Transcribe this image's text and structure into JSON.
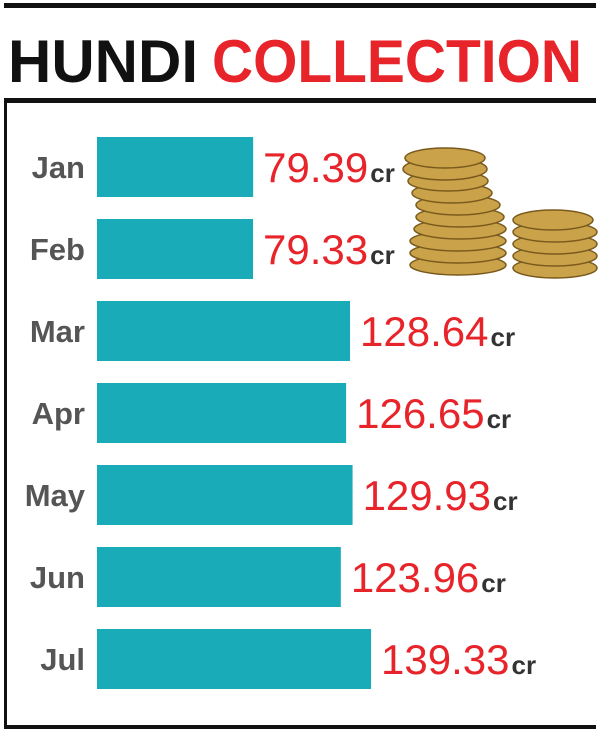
{
  "chart_data": {
    "type": "bar",
    "orientation": "horizontal",
    "title_parts": [
      "HUNDI",
      "COLLECTION"
    ],
    "categories": [
      "Jan",
      "Feb",
      "Mar",
      "Apr",
      "May",
      "Jun",
      "Jul"
    ],
    "values": [
      79.39,
      79.33,
      128.64,
      126.65,
      129.93,
      123.96,
      139.33
    ],
    "unit": "cr",
    "color": "#1aabb8",
    "label_color": "#e8242b"
  }
}
